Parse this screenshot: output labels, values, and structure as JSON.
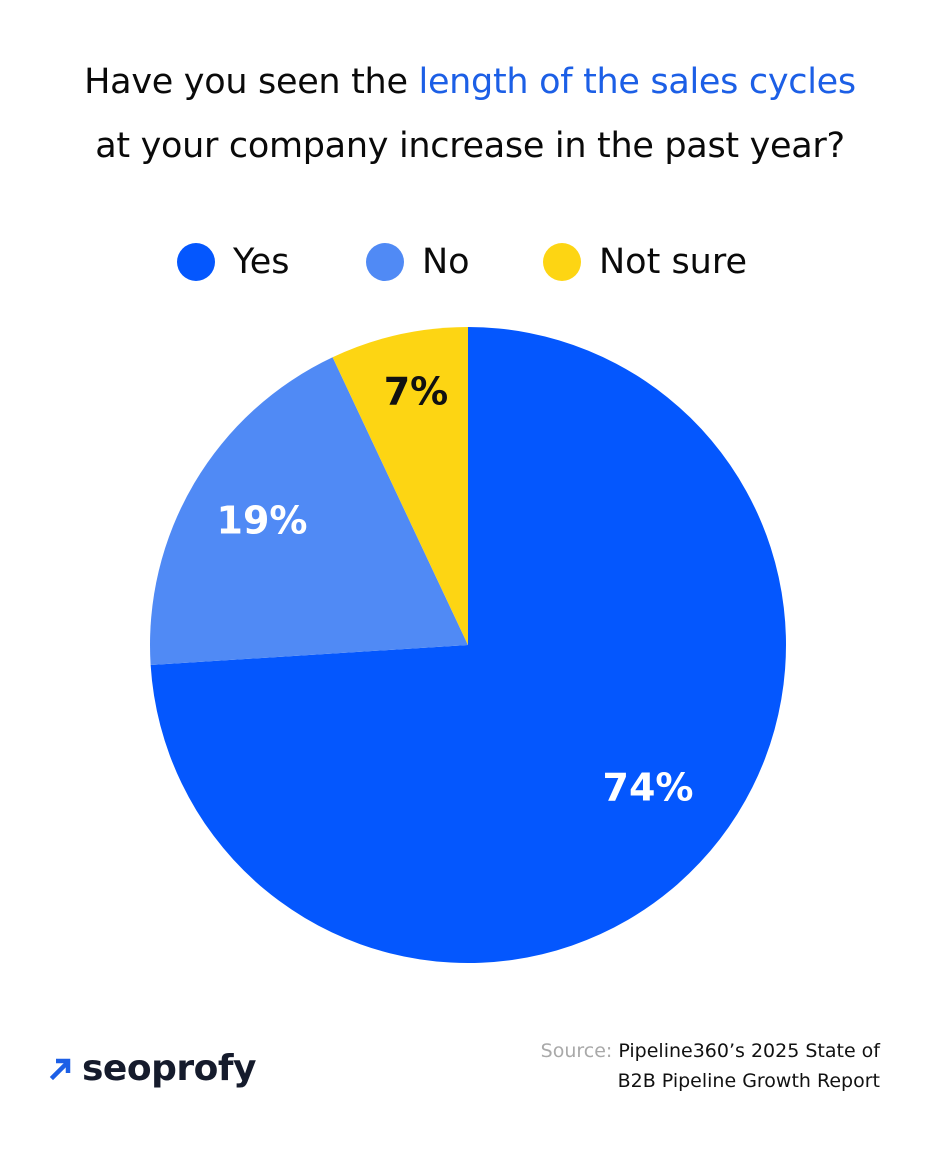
{
  "title": {
    "before": "Have you seen the ",
    "highlight": "length of the sales cycles",
    "line2": "at your company increase in the past year?"
  },
  "colors": {
    "accent": "#1c5fe6",
    "yes": "#0457fe",
    "no": "#508af5",
    "not_sure": "#fdd513"
  },
  "legend": [
    {
      "label": "Yes",
      "color": "#0457fe"
    },
    {
      "label": "No",
      "color": "#508af5"
    },
    {
      "label": "Not sure",
      "color": "#fdd513"
    }
  ],
  "chart_data": {
    "type": "pie",
    "title": "Have you seen the length of the sales cycles at your company increase in the past year?",
    "slices": [
      {
        "name": "Yes",
        "value": 74,
        "label": "74%",
        "color": "#0457fe",
        "label_color": "#ffffff"
      },
      {
        "name": "No",
        "value": 19,
        "label": "19%",
        "color": "#508af5",
        "label_color": "#ffffff"
      },
      {
        "name": "Not sure",
        "value": 7,
        "label": "7%",
        "color": "#fdd513",
        "label_color": "#111111"
      }
    ],
    "start": "12 o'clock",
    "direction": "clockwise",
    "legend_position": "top"
  },
  "footer": {
    "logo_text": "seoprofy",
    "logo_icon": "arrow-up-right-icon",
    "source_prefix": "Source: ",
    "source_line1": "Pipeline360’s 2025 State of",
    "source_line2": "B2B Pipeline Growth Report"
  }
}
